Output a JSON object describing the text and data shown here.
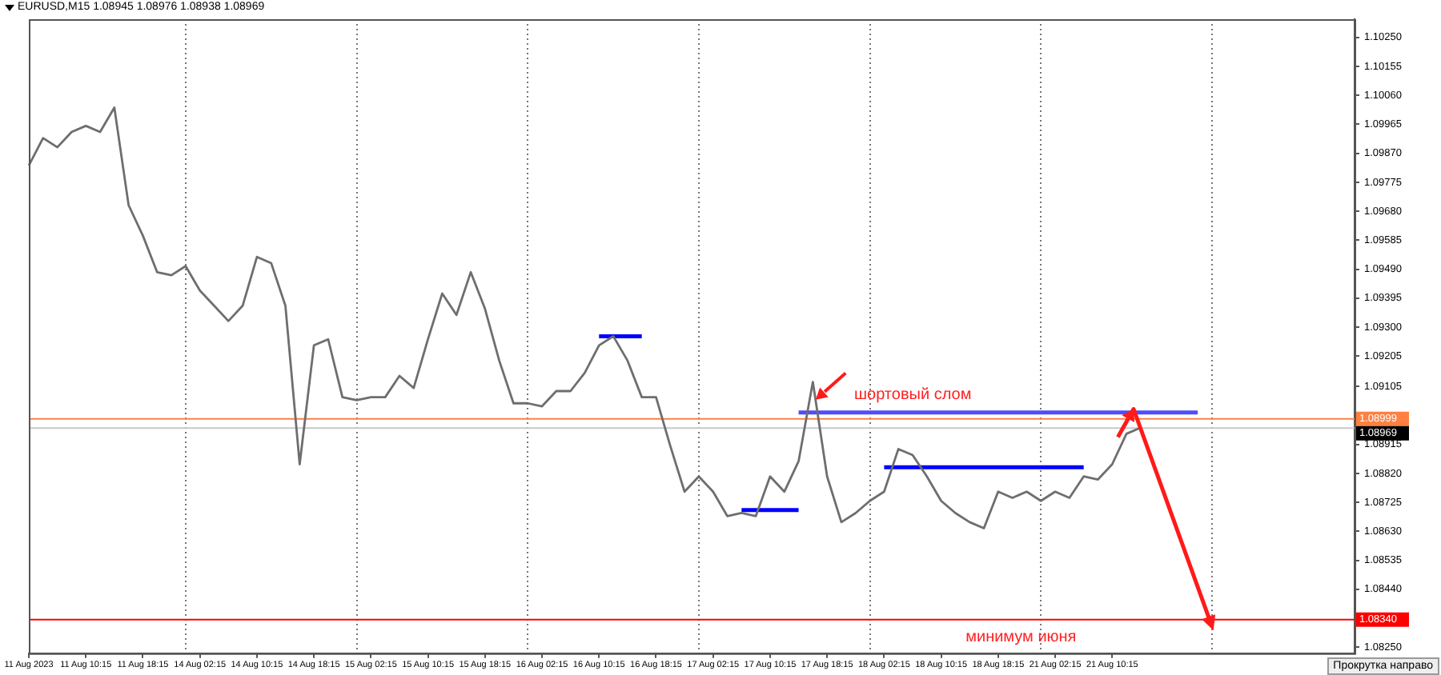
{
  "chart_data": {
    "type": "line",
    "title": "EURUSD,M15  1.08945 1.08976 1.08938 1.08969",
    "categories": [
      "11 Aug 2023",
      null,
      null,
      null,
      "11 Aug 10:15",
      null,
      null,
      null,
      "11 Aug 18:15",
      null,
      null,
      null,
      "14 Aug 02:15",
      null,
      null,
      null,
      "14 Aug 10:15",
      null,
      null,
      null,
      "14 Aug 18:15",
      null,
      null,
      null,
      "15 Aug 02:15",
      null,
      null,
      null,
      "15 Aug 10:15",
      null,
      null,
      null,
      "15 Aug 18:15",
      null,
      null,
      null,
      "16 Aug 02:15",
      null,
      null,
      null,
      "16 Aug 10:15",
      null,
      null,
      null,
      "16 Aug 18:15",
      null,
      null,
      null,
      "17 Aug 02:15",
      null,
      null,
      null,
      "17 Aug 10:15",
      null,
      null,
      null,
      "17 Aug 18:15",
      null,
      null,
      null,
      "18 Aug 02:15",
      null,
      null,
      null,
      "18 Aug 10:15",
      null,
      null,
      null,
      "18 Aug 18:15",
      null,
      null,
      null,
      "21 Aug 02:15",
      null,
      null,
      null,
      "21 Aug 10:15",
      null,
      null,
      null,
      null,
      null,
      null,
      null,
      null,
      null,
      null,
      null,
      null,
      null,
      null,
      null,
      null,
      null
    ],
    "series": [
      {
        "color": "#6e6e6e",
        "values": [
          1.0983,
          1.0992,
          1.0989,
          1.0994,
          1.0996,
          1.0994,
          1.1002,
          1.097,
          1.096,
          1.0948,
          1.0947,
          1.095,
          1.0942,
          1.0937,
          1.0932,
          1.0937,
          1.0953,
          1.0951,
          1.0937,
          1.0885,
          1.0924,
          1.0926,
          1.0907,
          1.0906,
          1.0907,
          1.0907,
          1.0914,
          1.091,
          1.0926,
          1.0941,
          1.0934,
          1.0948,
          1.0936,
          1.0919,
          1.0905,
          1.0905,
          1.0904,
          1.0909,
          1.0909,
          1.0915,
          1.0924,
          1.0927,
          1.0919,
          1.0907,
          1.0907,
          1.0891,
          1.0876,
          1.0881,
          1.0876,
          1.0868,
          1.0869,
          1.0868,
          1.0881,
          1.0876,
          1.0886,
          1.0912,
          1.0881,
          1.0866,
          1.0869,
          1.0873,
          1.0876,
          1.089,
          1.0888,
          1.0881,
          1.0873,
          1.0869,
          1.0866,
          1.0864,
          1.0876,
          1.0874,
          1.0876,
          1.0873,
          1.0876,
          1.0874,
          1.0881,
          1.088,
          1.0885,
          1.0895,
          1.0897,
          null,
          null,
          null,
          null,
          null,
          null,
          null,
          null,
          null,
          null,
          null,
          null,
          null,
          null,
          null
        ]
      },
      {
        "color": "#0000ff",
        "values": [
          null,
          null,
          null,
          null,
          null,
          null,
          null,
          null,
          null,
          null,
          null,
          null,
          null,
          null,
          null,
          null,
          null,
          null,
          null,
          null,
          null,
          null,
          null,
          null,
          null,
          null,
          null,
          null,
          null,
          null,
          null,
          null,
          null,
          null,
          null,
          null,
          null,
          null,
          null,
          null,
          1.0927,
          null,
          null,
          1.0927,
          null,
          null,
          null,
          null,
          null,
          null,
          null,
          null,
          null,
          null,
          null,
          null,
          null,
          null,
          null,
          null,
          null,
          null,
          null,
          null,
          null,
          null,
          null,
          null,
          null,
          null,
          null,
          null,
          null,
          null,
          null,
          null,
          null,
          null,
          null,
          null,
          null,
          null,
          null,
          null,
          null,
          null,
          null,
          null,
          null,
          null,
          null,
          null,
          null,
          null
        ]
      },
      {
        "color": "#0000ff",
        "values": [
          null,
          null,
          null,
          null,
          null,
          null,
          null,
          null,
          null,
          null,
          null,
          null,
          null,
          null,
          null,
          null,
          null,
          null,
          null,
          null,
          null,
          null,
          null,
          null,
          null,
          null,
          null,
          null,
          null,
          null,
          null,
          null,
          null,
          null,
          null,
          null,
          null,
          null,
          null,
          null,
          null,
          null,
          null,
          null,
          null,
          null,
          null,
          null,
          null,
          null,
          1.087,
          null,
          null,
          null,
          1.087,
          null,
          null,
          null,
          null,
          null,
          null,
          null,
          null,
          null,
          null,
          null,
          null,
          null,
          null,
          null,
          null,
          null,
          null,
          null,
          null,
          null,
          null,
          null,
          null,
          null,
          null,
          null,
          null,
          null,
          null,
          null,
          null,
          null,
          null,
          null,
          null,
          null,
          null,
          null
        ]
      },
      {
        "color": "#4d4dff",
        "values": [
          null,
          null,
          null,
          null,
          null,
          null,
          null,
          null,
          null,
          null,
          null,
          null,
          null,
          null,
          null,
          null,
          null,
          null,
          null,
          null,
          null,
          null,
          null,
          null,
          null,
          null,
          null,
          null,
          null,
          null,
          null,
          null,
          null,
          null,
          null,
          null,
          null,
          null,
          null,
          null,
          null,
          null,
          null,
          null,
          null,
          null,
          null,
          null,
          null,
          null,
          null,
          null,
          null,
          null,
          1.0902,
          null,
          null,
          null,
          null,
          null,
          null,
          null,
          null,
          null,
          null,
          null,
          null,
          null,
          null,
          null,
          null,
          null,
          null,
          null,
          null,
          null,
          null,
          null,
          null,
          null,
          null,
          null,
          1.0902,
          null,
          null,
          null,
          null,
          null,
          null,
          null,
          null,
          null,
          null,
          null
        ]
      },
      {
        "color": "#0000ff",
        "values": [
          null,
          null,
          null,
          null,
          null,
          null,
          null,
          null,
          null,
          null,
          null,
          null,
          null,
          null,
          null,
          null,
          null,
          null,
          null,
          null,
          null,
          null,
          null,
          null,
          null,
          null,
          null,
          null,
          null,
          null,
          null,
          null,
          null,
          null,
          null,
          null,
          null,
          null,
          null,
          null,
          null,
          null,
          null,
          null,
          null,
          null,
          null,
          null,
          null,
          null,
          null,
          null,
          null,
          null,
          null,
          null,
          null,
          null,
          null,
          null,
          1.0884,
          null,
          null,
          null,
          null,
          null,
          null,
          null,
          null,
          null,
          null,
          null,
          null,
          null,
          1.0884,
          null,
          null,
          null,
          null,
          null,
          null,
          null,
          null,
          null,
          null,
          null,
          null,
          null,
          null,
          null,
          null,
          null,
          null,
          null
        ]
      }
    ],
    "ylim": [
      1.0823,
      1.1031
    ],
    "yticks": [
      {
        "value": 1.1025,
        "label": "1.10250"
      },
      {
        "value": 1.10155,
        "label": "1.10155"
      },
      {
        "value": 1.1006,
        "label": "1.10060"
      },
      {
        "value": 1.09965,
        "label": "1.09965"
      },
      {
        "value": 1.0987,
        "label": "1.09870"
      },
      {
        "value": 1.09775,
        "label": "1.09775"
      },
      {
        "value": 1.0968,
        "label": "1.09680"
      },
      {
        "value": 1.09585,
        "label": "1.09585"
      },
      {
        "value": 1.0949,
        "label": "1.09490"
      },
      {
        "value": 1.09395,
        "label": "1.09395"
      },
      {
        "value": 1.093,
        "label": "1.09300"
      },
      {
        "value": 1.09205,
        "label": "1.09205"
      },
      {
        "value": 1.09105,
        "label": "1.09105"
      },
      {
        "value": 1.08915,
        "label": "1.08915"
      },
      {
        "value": 1.0882,
        "label": "1.08820"
      },
      {
        "value": 1.08725,
        "label": "1.08725"
      },
      {
        "value": 1.0863,
        "label": "1.08630"
      },
      {
        "value": 1.08535,
        "label": "1.08535"
      },
      {
        "value": 1.0844,
        "label": "1.08440"
      },
      {
        "value": 1.0825,
        "label": "1.08250"
      }
    ],
    "ref_lines": [
      {
        "axis": "y",
        "value": 1.08999,
        "label": "1.08999",
        "color": "#ff8040"
      },
      {
        "axis": "y",
        "value": 1.08969,
        "label": "1.08969",
        "color": "#c8c8c8"
      },
      {
        "axis": "y",
        "value": 1.0834,
        "label": "1.08340",
        "color": "#ff0000"
      }
    ],
    "annotations": [
      "шортовый слом",
      "минимум июня",
      "Прокрутка направо"
    ],
    "grid": "x",
    "marker": "none",
    "line_style": "solid"
  }
}
